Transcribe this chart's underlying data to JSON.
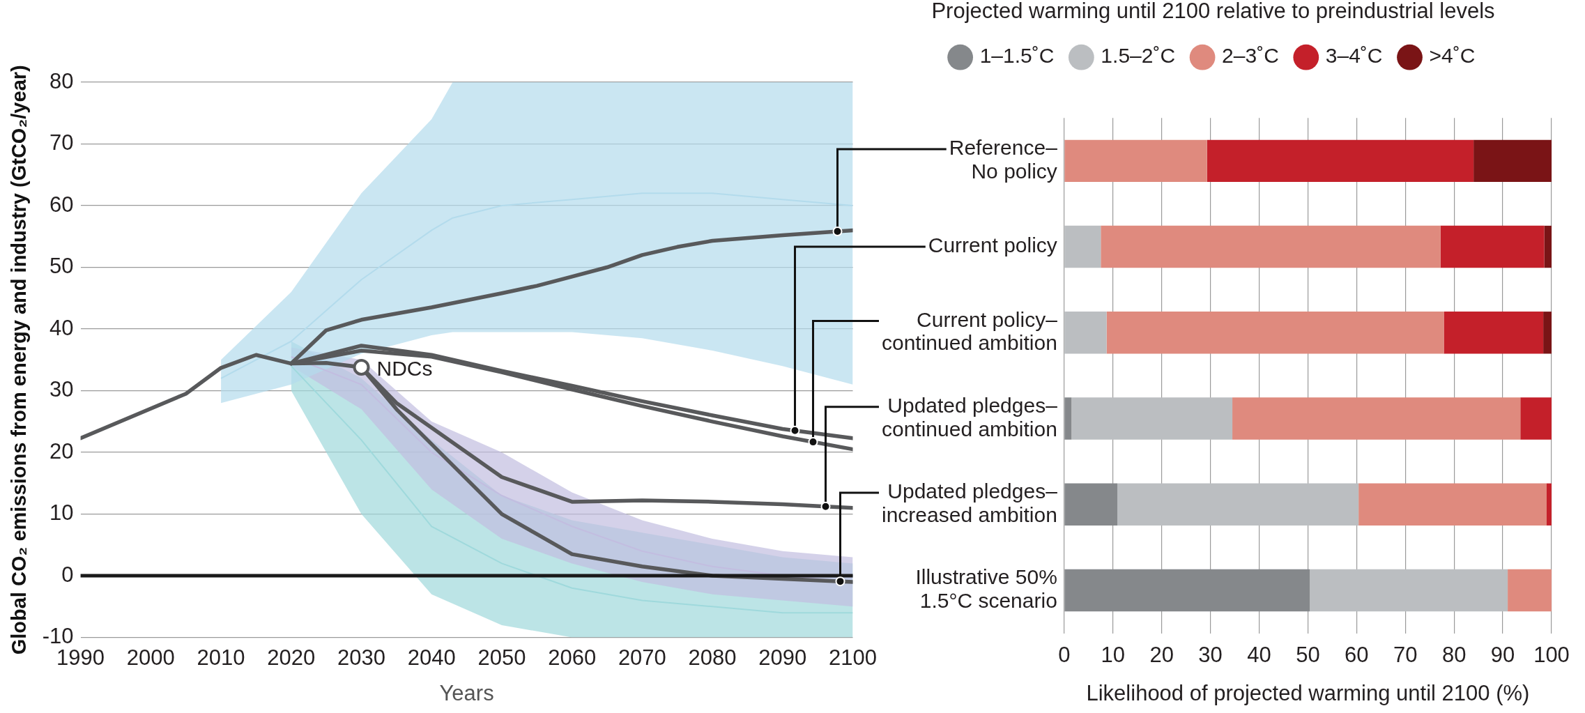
{
  "chart_data": [
    {
      "type": "line",
      "xlabel": "Years",
      "ylabel": "Global CO₂ emissions from energy and industry (GtCO₂/year)",
      "xlim": [
        1990,
        2100
      ],
      "xticks": [
        1990,
        2000,
        2010,
        2020,
        2030,
        2040,
        2050,
        2060,
        2070,
        2080,
        2090,
        2100
      ],
      "ylim": [
        -10,
        80
      ],
      "yticks": [
        -10,
        0,
        10,
        20,
        30,
        40,
        50,
        60,
        70,
        80
      ],
      "grid": "y",
      "legend": false,
      "marker": "none",
      "line_style": "solid",
      "ref_lines": [
        {
          "axis": "y",
          "value": 0,
          "color": "#1a1a1a"
        }
      ],
      "annotations": [
        {
          "text": "NDCs",
          "x": 2030,
          "y": 33.8
        }
      ],
      "series": [
        {
          "type": "line",
          "color": "#b3dbec",
          "x": [
            2010,
            2020,
            2030,
            2040,
            2043,
            2050,
            2060,
            2070,
            2080,
            2090,
            2100
          ],
          "values": [
            32,
            38,
            48,
            56,
            58,
            60,
            61,
            62,
            62,
            61,
            60
          ],
          "lower": [
            28,
            31,
            36,
            39,
            39.5,
            39.5,
            39.5,
            38.5,
            36.5,
            34,
            31
          ],
          "upper": [
            35,
            46,
            62,
            74,
            80,
            80,
            80,
            80,
            80,
            80,
            80
          ]
        },
        {
          "type": "line",
          "color": "#c2bde0",
          "x": [
            2020,
            2030,
            2040,
            2050,
            2060,
            2070,
            2080,
            2090,
            2100
          ],
          "values": [
            35.5,
            31,
            20,
            13,
            8,
            4,
            1.5,
            0,
            -1
          ],
          "lower": [
            34,
            27,
            14,
            6,
            2,
            -1,
            -3,
            -4,
            -5
          ],
          "upper": [
            37,
            35,
            25,
            20,
            13.5,
            9,
            6,
            4,
            3
          ]
        },
        {
          "type": "line",
          "color": "#9fd9dc",
          "x": [
            2020,
            2030,
            2040,
            2050,
            2060,
            2070,
            2080,
            2090,
            2100
          ],
          "values": [
            34,
            22,
            8,
            2,
            -2,
            -4,
            -5,
            -6,
            -6
          ],
          "lower": [
            30,
            10,
            -3,
            -8,
            -10,
            -10,
            -10,
            -10,
            -10
          ],
          "upper": [
            38,
            32,
            22,
            13,
            9,
            7,
            5,
            3,
            2
          ]
        },
        {
          "type": "line",
          "color": "#58595b",
          "x": [
            1990,
            2005,
            2010,
            2015,
            2020,
            2025,
            2030
          ],
          "values": [
            22.3,
            29.5,
            33.7,
            35.8,
            34.4,
            34.5,
            33.8
          ]
        },
        {
          "type": "line",
          "color": "#58595b",
          "x": [
            2020,
            2025,
            2030,
            2040,
            2050,
            2055,
            2060,
            2065,
            2070,
            2075,
            2080,
            2090,
            2100
          ],
          "values": [
            34.4,
            39.8,
            41.5,
            43.5,
            45.8,
            47,
            48.5,
            50,
            52,
            53.3,
            54.3,
            55.2,
            56
          ]
        },
        {
          "type": "line",
          "color": "#58595b",
          "x": [
            2020,
            2030,
            2040,
            2050,
            2060,
            2070,
            2080,
            2090,
            2100
          ],
          "values": [
            34.4,
            37.3,
            35.8,
            33.2,
            30.8,
            28.3,
            26,
            23.8,
            22.3
          ]
        },
        {
          "type": "line",
          "color": "#58595b",
          "x": [
            2020,
            2030,
            2040,
            2050,
            2060,
            2070,
            2080,
            2090,
            2100
          ],
          "values": [
            34.4,
            36.5,
            35.5,
            33,
            30.2,
            27.5,
            25,
            22.6,
            20.5
          ]
        },
        {
          "type": "line",
          "color": "#58595b",
          "x": [
            2030,
            2035,
            2050,
            2060,
            2070,
            2080,
            2090,
            2100
          ],
          "values": [
            33.8,
            28,
            16,
            12,
            12.2,
            12,
            11.6,
            11
          ]
        },
        {
          "type": "line",
          "color": "#58595b",
          "x": [
            2030,
            2035,
            2050,
            2060,
            2070,
            2080,
            2090,
            2100
          ],
          "values": [
            33.8,
            27,
            10,
            3.5,
            1.5,
            0,
            -0.5,
            -1
          ]
        }
      ]
    },
    {
      "type": "bar",
      "orientation": "horizontal",
      "stacked": true,
      "legend_title": "Projected warming until 2100 relative to preindustrial levels",
      "legend": "top",
      "xlabel": "Likelihood of projected warming until 2100 (%)",
      "xlim": [
        0,
        100
      ],
      "xticks": [
        0,
        10,
        20,
        30,
        40,
        50,
        60,
        70,
        80,
        90,
        100
      ],
      "grid": "x",
      "categories": [
        "Reference– No policy",
        "Current policy",
        "Current policy– continued ambition",
        "Updated pledges– continued ambition",
        "Updated pledges– increased ambition",
        "Illustrative 50% 1.5°C scenario"
      ],
      "series": [
        {
          "name": "1–1.5˚C",
          "color": "#85888b",
          "values": [
            0,
            0,
            0,
            1.5,
            10.9,
            50.4
          ]
        },
        {
          "name": "1.5–2˚C",
          "color": "#bbbec1",
          "values": [
            0,
            7.5,
            8.7,
            33,
            49.5,
            40.6
          ]
        },
        {
          "name": "2–3˚C",
          "color": "#df8a7e",
          "values": [
            29.3,
            69.7,
            69.2,
            59.1,
            38.6,
            9
          ]
        },
        {
          "name": "3–4˚C",
          "color": "#c4202a",
          "values": [
            54.7,
            21.3,
            20.4,
            6.4,
            1,
            0
          ]
        },
        {
          "name": ">4˚C",
          "color": "#7a1416",
          "values": [
            16,
            1.5,
            1.7,
            0,
            0,
            0
          ]
        }
      ]
    }
  ]
}
